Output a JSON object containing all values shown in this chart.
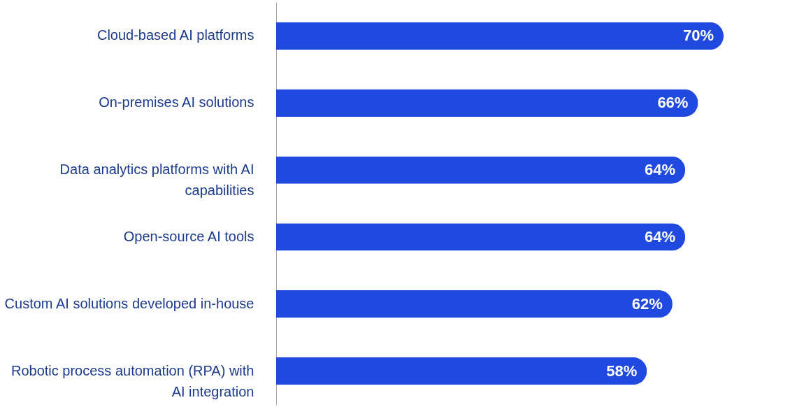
{
  "chart_data": {
    "type": "bar",
    "orientation": "horizontal",
    "categories": [
      "Cloud-based AI platforms",
      "On-premises AI solutions",
      "Data analytics platforms with AI capabilities",
      "Open-source AI tools",
      "Custom AI solutions developed in-house",
      "Robotic process automation (RPA) with AI integration"
    ],
    "values": [
      70,
      66,
      64,
      64,
      62,
      58
    ],
    "value_labels": [
      "70%",
      "66%",
      "64%",
      "64%",
      "62%",
      "58%"
    ],
    "color": "#2049e0",
    "xlim": [
      0,
      70
    ],
    "tick_labels": "y",
    "grid": false
  }
}
